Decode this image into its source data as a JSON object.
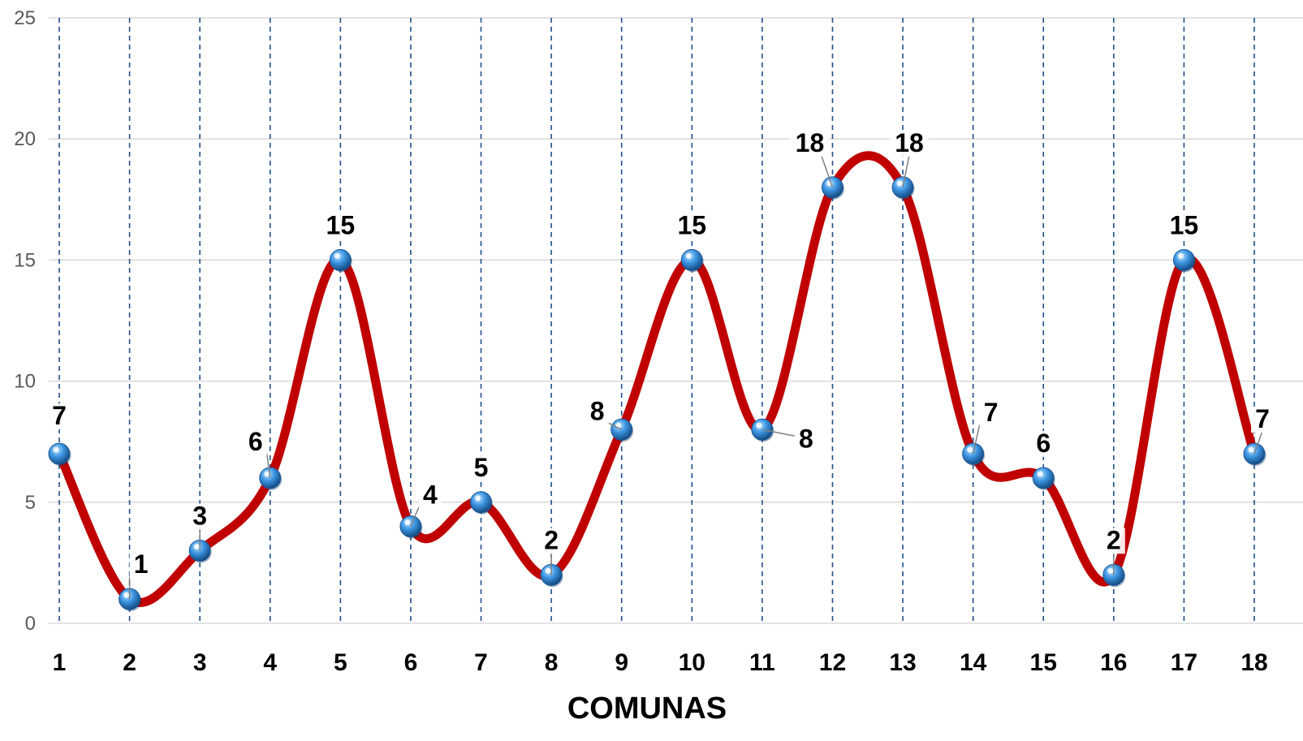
{
  "chart_data": {
    "type": "line",
    "smooth": true,
    "categories": [
      "1",
      "2",
      "3",
      "4",
      "5",
      "6",
      "7",
      "8",
      "9",
      "10",
      "11",
      "12",
      "13",
      "14",
      "15",
      "16",
      "17",
      "18"
    ],
    "series": [
      {
        "values": [
          7,
          1,
          3,
          6,
          15,
          4,
          5,
          2,
          8,
          15,
          8,
          18,
          18,
          7,
          6,
          2,
          15,
          7
        ]
      }
    ],
    "xlabel": "COMUNAS",
    "ylabel": "",
    "ylim": [
      0,
      25
    ],
    "yticks": [
      "0",
      "5",
      "10",
      "15",
      "20",
      "25"
    ],
    "grid": {
      "horizontal": true,
      "vertical": true
    },
    "legend": "none",
    "colors": {
      "line": "#c00000",
      "marker": "#2e7fd1",
      "vgrid": "#1f4e8c",
      "hgrid": "#d9d9d9"
    }
  }
}
